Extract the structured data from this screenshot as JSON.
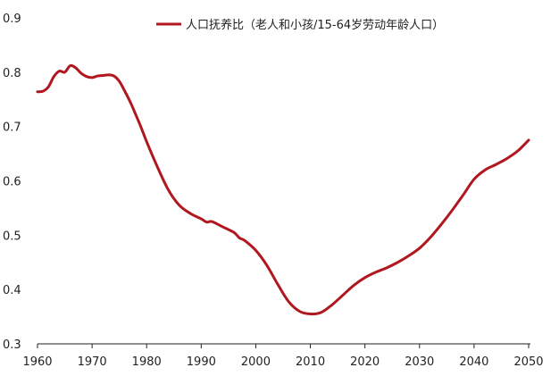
{
  "chart_data": {
    "type": "line",
    "title": "",
    "xlabel": "",
    "ylabel": "",
    "xlim": [
      1960,
      2050
    ],
    "ylim": [
      0.3,
      0.9
    ],
    "x_ticks": [
      1960,
      1970,
      1980,
      1990,
      2000,
      2010,
      2020,
      2030,
      2040,
      2050
    ],
    "y_ticks": [
      0.3,
      0.4,
      0.5,
      0.6,
      0.7,
      0.8,
      0.9
    ],
    "y_tick_labels": [
      "0.3",
      "0.4",
      "0.5",
      "0.6",
      "0.7",
      "0.8",
      "0.9"
    ],
    "grid": false,
    "legend_position": "top",
    "series": [
      {
        "name": "人口抚养比（老人和小孩/15-64岁劳动年龄人口）",
        "color": "#b0171f",
        "x": [
          1960,
          1961,
          1962,
          1963,
          1964,
          1965,
          1966,
          1967,
          1968,
          1969,
          1970,
          1971,
          1972,
          1973,
          1974,
          1975,
          1976,
          1977,
          1978,
          1979,
          1980,
          1982,
          1984,
          1986,
          1988,
          1990,
          1991,
          1992,
          1994,
          1996,
          1997,
          1998,
          2000,
          2002,
          2004,
          2006,
          2008,
          2010,
          2012,
          2014,
          2016,
          2018,
          2020,
          2022,
          2024,
          2026,
          2028,
          2030,
          2032,
          2034,
          2036,
          2038,
          2040,
          2042,
          2044,
          2046,
          2048,
          2050
        ],
        "values": [
          0.764,
          0.765,
          0.773,
          0.792,
          0.802,
          0.8,
          0.812,
          0.808,
          0.798,
          0.792,
          0.79,
          0.793,
          0.794,
          0.795,
          0.793,
          0.783,
          0.765,
          0.745,
          0.722,
          0.698,
          0.672,
          0.625,
          0.583,
          0.555,
          0.54,
          0.53,
          0.524,
          0.525,
          0.515,
          0.505,
          0.495,
          0.49,
          0.472,
          0.445,
          0.41,
          0.378,
          0.36,
          0.355,
          0.358,
          0.372,
          0.39,
          0.408,
          0.422,
          0.432,
          0.44,
          0.45,
          0.462,
          0.476,
          0.496,
          0.52,
          0.546,
          0.574,
          0.603,
          0.62,
          0.63,
          0.641,
          0.655,
          0.675
        ]
      }
    ]
  }
}
